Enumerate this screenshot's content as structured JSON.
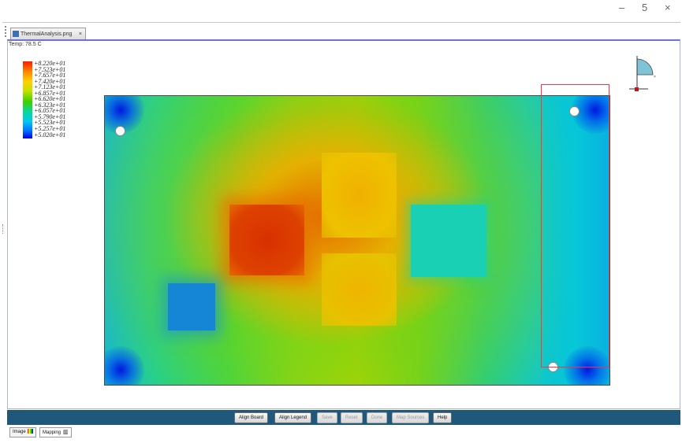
{
  "window": {
    "controls": [
      "–",
      "5",
      "×"
    ]
  },
  "document_tab": {
    "label": "ThermalAnalysis.png",
    "close": "×"
  },
  "readout": {
    "temperature": "Temp: 78.5 C"
  },
  "legend": {
    "labels": [
      "+8.220e+01",
      "+7.523e+01",
      "+7.657e+01",
      "+7.420e+01",
      "+7.123e+01",
      "+6.857e+01",
      "+6.620e+01",
      "+6.323e+01",
      "+6.057e+01",
      "+5.790e+01",
      "+5.523e+01",
      "+5.257e+01",
      "+5.020e+01"
    ]
  },
  "toolbar": {
    "buttons": [
      {
        "label": "Align Board",
        "enabled": true
      },
      {
        "label": "Align Legend",
        "enabled": true
      },
      {
        "label": "Save",
        "enabled": false
      },
      {
        "label": "Reset",
        "enabled": false
      },
      {
        "label": "Done",
        "enabled": false
      },
      {
        "label": "Map Sources",
        "enabled": false
      },
      {
        "label": "Help",
        "enabled": true
      }
    ]
  },
  "bottom_tabs": [
    {
      "label": "Image"
    },
    {
      "label": "Mapping"
    }
  ],
  "colors": {
    "toolbar_bg": "#1f587a",
    "selection": "#ff3040",
    "viewer_border": "#6b73d6"
  }
}
